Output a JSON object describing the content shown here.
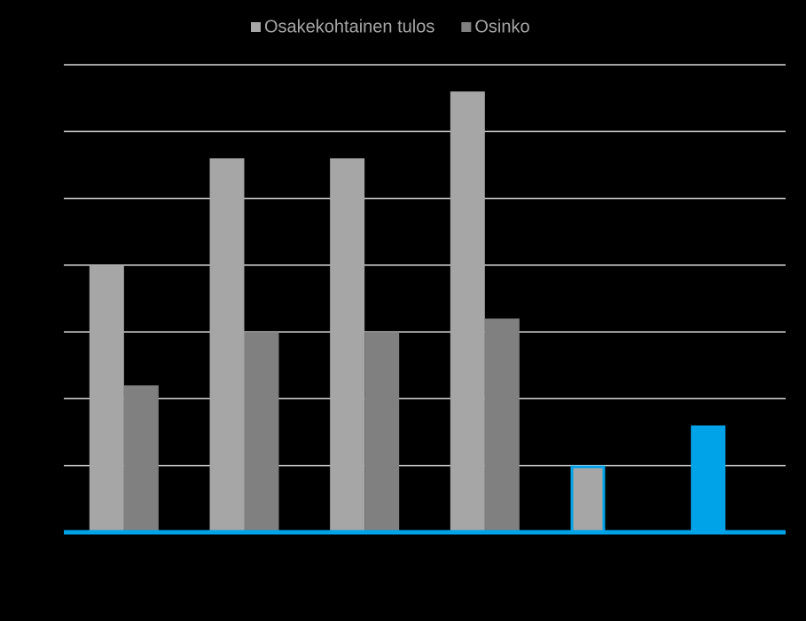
{
  "chart_data": {
    "type": "bar",
    "categories": [
      null,
      null,
      null,
      null,
      null,
      null
    ],
    "series": [
      {
        "name": "Osakekohtainen tulos",
        "color": "#a6a6a6",
        "values": [
          4.0,
          5.6,
          5.6,
          6.6,
          1.0,
          1.6
        ],
        "colors": [
          "#a6a6a6",
          "#a6a6a6",
          "#a6a6a6",
          "#a6a6a6",
          "#a6a6a6",
          "#00a2e8"
        ],
        "edge_colors": [
          null,
          null,
          null,
          null,
          "#00a2e8",
          null
        ]
      },
      {
        "name": "Osinko",
        "color": "#808080",
        "values": [
          2.2,
          3.0,
          3.0,
          3.2,
          null,
          null
        ]
      }
    ],
    "ylim": [
      0,
      7
    ],
    "yticks": [
      0,
      1,
      2,
      3,
      4,
      5,
      6,
      7
    ],
    "grid": true,
    "axis_color": "#00a2e8"
  }
}
